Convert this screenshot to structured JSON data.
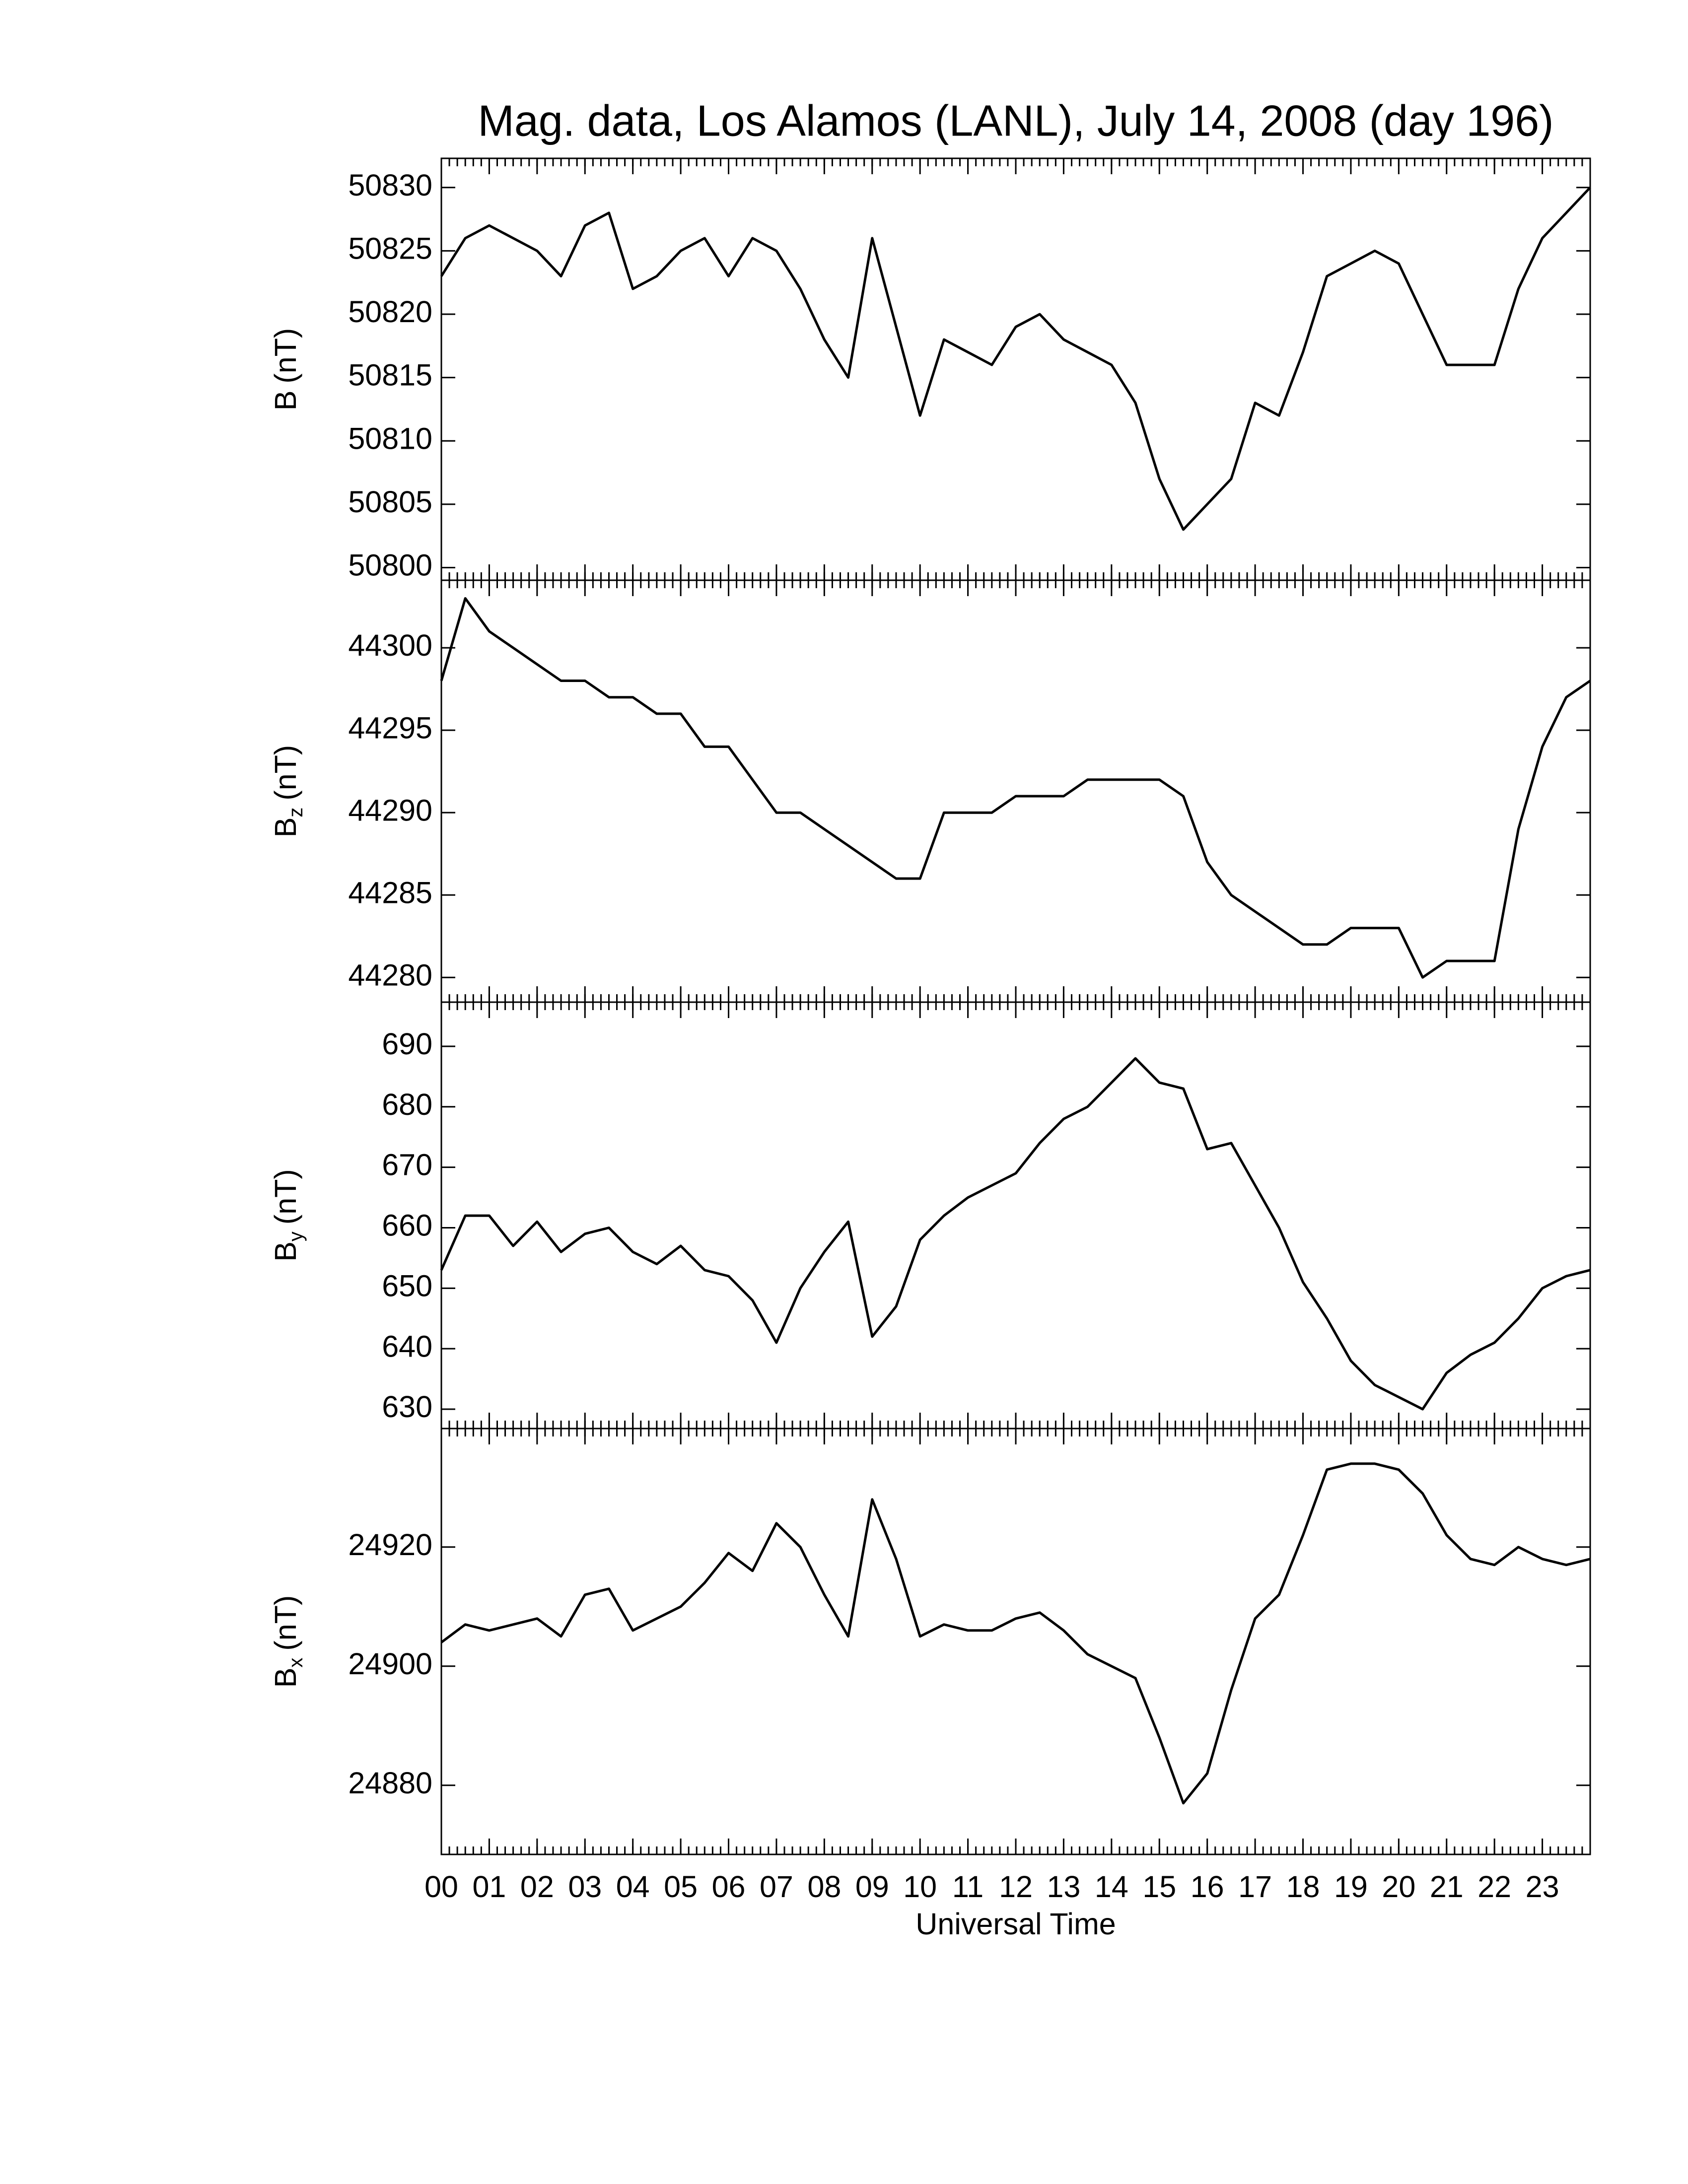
{
  "chart_data": [
    {
      "type": "line",
      "title": "Mag. data, Los Alamos (LANL), July 14, 2008 (day 196)",
      "ylabel": {
        "symbol": "B",
        "unit": "(nT)"
      },
      "color": "#000000",
      "x": [
        0,
        0.5,
        1,
        1.5,
        2,
        2.5,
        3,
        3.5,
        4,
        4.5,
        5,
        5.5,
        6,
        6.5,
        7,
        7.5,
        8,
        8.5,
        9,
        9.5,
        10,
        10.5,
        11,
        11.5,
        12,
        12.5,
        13,
        13.5,
        14,
        14.5,
        15,
        15.5,
        16,
        16.5,
        17,
        17.5,
        18,
        18.5,
        19,
        19.5,
        20,
        20.5,
        21,
        21.5,
        22,
        22.5,
        23,
        23.5,
        24
      ],
      "values": [
        50823,
        50826,
        50827,
        50826,
        50825,
        50823,
        50827,
        50828,
        50822,
        50823,
        50825,
        50826,
        50823,
        50826,
        50825,
        50822,
        50818,
        50815,
        50826,
        50819,
        50812,
        50818,
        50817,
        50816,
        50819,
        50820,
        50818,
        50817,
        50816,
        50813,
        50807,
        50803,
        50805,
        50807,
        50813,
        50812,
        50817,
        50823,
        50824,
        50825,
        50824,
        50820,
        50816,
        50816,
        50816,
        50822,
        50826,
        50828,
        50830
      ],
      "xlim": [
        0,
        24
      ],
      "ylim": [
        50799,
        50832.3
      ],
      "yticks": [
        50800,
        50805,
        50810,
        50815,
        50820,
        50825,
        50830
      ]
    },
    {
      "type": "line",
      "ylabel": {
        "symbol": "B",
        "subscript": "z",
        "unit": "(nT)"
      },
      "color": "#000000",
      "x": [
        0,
        0.5,
        1,
        1.5,
        2,
        2.5,
        3,
        3.5,
        4,
        4.5,
        5,
        5.5,
        6,
        6.5,
        7,
        7.5,
        8,
        8.5,
        9,
        9.5,
        10,
        10.5,
        11,
        11.5,
        12,
        12.5,
        13,
        13.5,
        14,
        14.5,
        15,
        15.5,
        16,
        16.5,
        17,
        17.5,
        18,
        18.5,
        19,
        19.5,
        20,
        20.5,
        21,
        21.5,
        22,
        22.5,
        23,
        23.5,
        24
      ],
      "values": [
        44298,
        44303,
        44301,
        44300,
        44299,
        44298,
        44298,
        44297,
        44297,
        44296,
        44296,
        44294,
        44294,
        44292,
        44290,
        44290,
        44289,
        44288,
        44287,
        44286,
        44286,
        44290,
        44290,
        44290,
        44291,
        44291,
        44291,
        44292,
        44292,
        44292,
        44292,
        44291,
        44287,
        44285,
        44284,
        44283,
        44282,
        44282,
        44283,
        44283,
        44283,
        44280,
        44281,
        44281,
        44281,
        44289,
        44294,
        44297,
        44298
      ],
      "xlim": [
        0,
        24
      ],
      "ylim": [
        44278.5,
        44304.1
      ],
      "yticks": [
        44280,
        44285,
        44290,
        44295,
        44300
      ]
    },
    {
      "type": "line",
      "ylabel": {
        "symbol": "B",
        "subscript": "y",
        "unit": "(nT)"
      },
      "color": "#000000",
      "x": [
        0,
        0.5,
        1,
        1.5,
        2,
        2.5,
        3,
        3.5,
        4,
        4.5,
        5,
        5.5,
        6,
        6.5,
        7,
        7.5,
        8,
        8.5,
        9,
        9.5,
        10,
        10.5,
        11,
        11.5,
        12,
        12.5,
        13,
        13.5,
        14,
        14.5,
        15,
        15.5,
        16,
        16.5,
        17,
        17.5,
        18,
        18.5,
        19,
        19.5,
        20,
        20.5,
        21,
        21.5,
        22,
        22.5,
        23,
        23.5,
        24
      ],
      "values": [
        653,
        662,
        662,
        657,
        661,
        656,
        659,
        660,
        656,
        654,
        657,
        653,
        652,
        648,
        641,
        650,
        656,
        661,
        642,
        647,
        658,
        662,
        665,
        667,
        669,
        674,
        678,
        680,
        684,
        688,
        684,
        683,
        673,
        674,
        667,
        660,
        651,
        645,
        638,
        634,
        632,
        630,
        636,
        639,
        641,
        645,
        650,
        652,
        653
      ],
      "xlim": [
        0,
        24
      ],
      "ylim": [
        626.8,
        697.3
      ],
      "yticks": [
        630,
        640,
        650,
        660,
        670,
        680,
        690
      ]
    },
    {
      "type": "line",
      "ylabel": {
        "symbol": "B",
        "subscript": "x",
        "unit": "(nT)"
      },
      "color": "#000000",
      "xlabel": "Universal Time",
      "x": [
        0,
        0.5,
        1,
        1.5,
        2,
        2.5,
        3,
        3.5,
        4,
        4.5,
        5,
        5.5,
        6,
        6.5,
        7,
        7.5,
        8,
        8.5,
        9,
        9.5,
        10,
        10.5,
        11,
        11.5,
        12,
        12.5,
        13,
        13.5,
        14,
        14.5,
        15,
        15.5,
        16,
        16.5,
        17,
        17.5,
        18,
        18.5,
        19,
        19.5,
        20,
        20.5,
        21,
        21.5,
        22,
        22.5,
        23,
        23.5,
        24
      ],
      "values": [
        24904,
        24907,
        24906,
        24907,
        24908,
        24905,
        24912,
        24913,
        24906,
        24908,
        24910,
        24914,
        24919,
        24916,
        24924,
        24920,
        24912,
        24905,
        24928,
        24918,
        24905,
        24907,
        24906,
        24906,
        24908,
        24909,
        24906,
        24902,
        24900,
        24898,
        24888,
        24877,
        24882,
        24896,
        24908,
        24912,
        24922,
        24933,
        24934,
        24934,
        24933,
        24929,
        24922,
        24918,
        24917,
        24920,
        24918,
        24917,
        24918
      ],
      "xlim": [
        0,
        24
      ],
      "ylim": [
        24868.4,
        24939.9
      ],
      "yticks": [
        24880,
        24900,
        24920
      ],
      "xticks": [
        {
          "value": 0,
          "label": "00"
        },
        {
          "value": 1,
          "label": "01"
        },
        {
          "value": 2,
          "label": "02"
        },
        {
          "value": 3,
          "label": "03"
        },
        {
          "value": 4,
          "label": "04"
        },
        {
          "value": 5,
          "label": "05"
        },
        {
          "value": 6,
          "label": "06"
        },
        {
          "value": 7,
          "label": "07"
        },
        {
          "value": 8,
          "label": "08"
        },
        {
          "value": 9,
          "label": "09"
        },
        {
          "value": 10,
          "label": "10"
        },
        {
          "value": 11,
          "label": "11"
        },
        {
          "value": 12,
          "label": "12"
        },
        {
          "value": 13,
          "label": "13"
        },
        {
          "value": 14,
          "label": "14"
        },
        {
          "value": 15,
          "label": "15"
        },
        {
          "value": 16,
          "label": "16"
        },
        {
          "value": 17,
          "label": "17"
        },
        {
          "value": 18,
          "label": "18"
        },
        {
          "value": 19,
          "label": "19"
        },
        {
          "value": 20,
          "label": "20"
        },
        {
          "value": 21,
          "label": "21"
        },
        {
          "value": 22,
          "label": "22"
        },
        {
          "value": 23,
          "label": "23"
        }
      ]
    }
  ]
}
